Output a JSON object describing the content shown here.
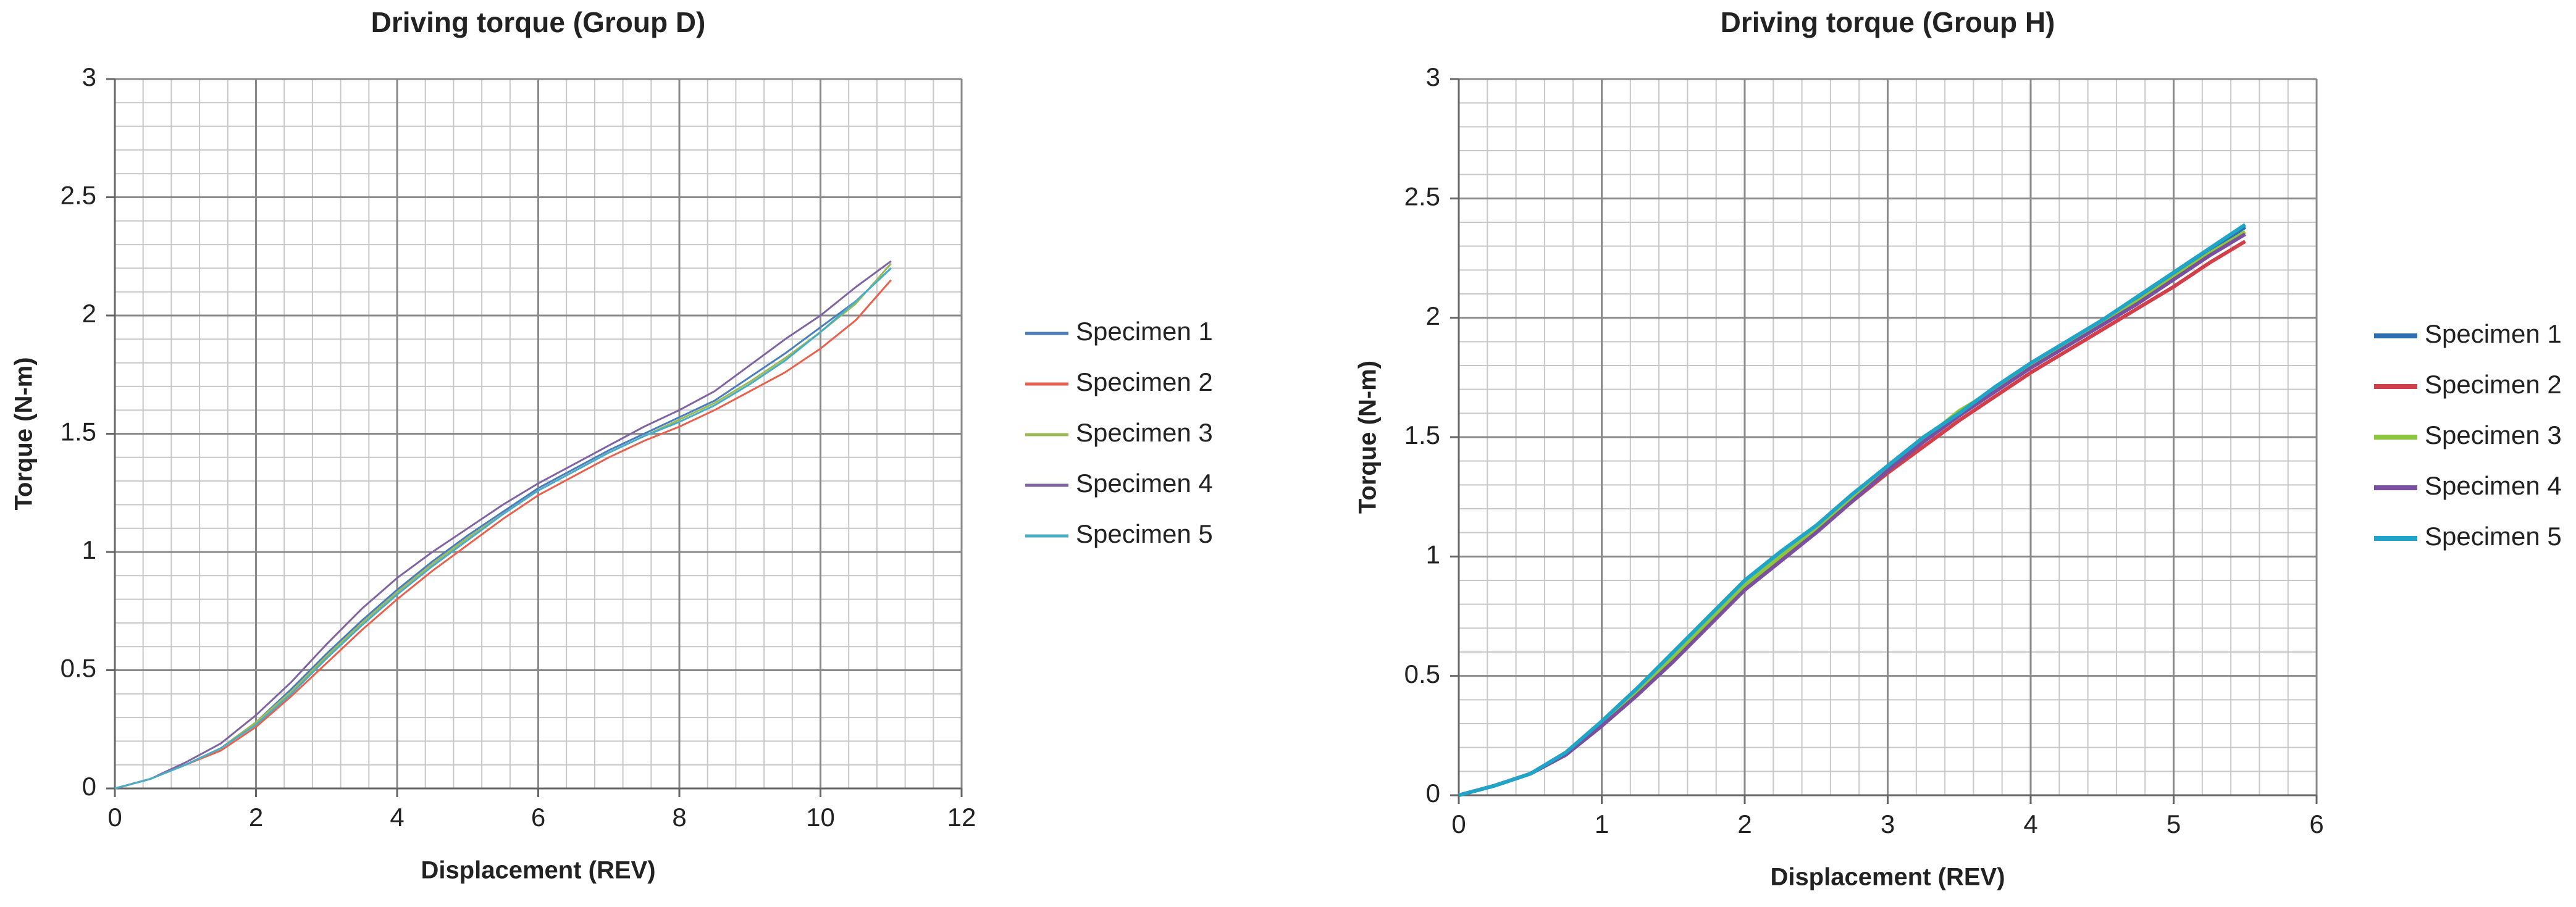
{
  "chart_data": [
    {
      "type": "line",
      "title": "Driving torque (Group D)",
      "x_label": "Displacement (REV)",
      "y_label": "Torque (N-m)",
      "xlim": [
        0,
        12
      ],
      "xticks": [
        0,
        2,
        4,
        6,
        8,
        10,
        12
      ],
      "ylim": [
        0,
        3
      ],
      "yticks": [
        0,
        0.5,
        1,
        1.5,
        2,
        2.5,
        3
      ],
      "grid": true,
      "legend": "right",
      "x": [
        0,
        0.5,
        1,
        1.5,
        2,
        2.5,
        3,
        3.5,
        4,
        4.5,
        5,
        5.5,
        6,
        6.5,
        7,
        7.5,
        8,
        8.5,
        9,
        9.5,
        10,
        10.5,
        11
      ],
      "series": [
        {
          "name": "Specimen 1",
          "color": "#4a7ebb",
          "values": [
            0,
            0.04,
            0.1,
            0.17,
            0.28,
            0.42,
            0.57,
            0.71,
            0.84,
            0.96,
            1.07,
            1.17,
            1.27,
            1.35,
            1.43,
            1.5,
            1.57,
            1.64,
            1.74,
            1.84,
            1.95,
            2.06,
            2.2
          ]
        },
        {
          "name": "Specimen 2",
          "color": "#e8604e",
          "values": [
            0,
            0.04,
            0.1,
            0.16,
            0.26,
            0.39,
            0.53,
            0.67,
            0.8,
            0.92,
            1.03,
            1.14,
            1.24,
            1.32,
            1.4,
            1.47,
            1.53,
            1.6,
            1.68,
            1.76,
            1.86,
            1.98,
            2.15
          ]
        },
        {
          "name": "Specimen 3",
          "color": "#9bbb59",
          "values": [
            0,
            0.04,
            0.1,
            0.17,
            0.28,
            0.41,
            0.56,
            0.7,
            0.83,
            0.95,
            1.06,
            1.16,
            1.26,
            1.34,
            1.42,
            1.49,
            1.56,
            1.63,
            1.72,
            1.82,
            1.93,
            2.05,
            2.22
          ]
        },
        {
          "name": "Specimen 4",
          "color": "#8064a2",
          "values": [
            0,
            0.04,
            0.11,
            0.19,
            0.31,
            0.45,
            0.61,
            0.76,
            0.89,
            1.0,
            1.1,
            1.2,
            1.29,
            1.37,
            1.45,
            1.53,
            1.6,
            1.68,
            1.79,
            1.9,
            2.0,
            2.12,
            2.23
          ]
        },
        {
          "name": "Specimen 5",
          "color": "#4bacc6",
          "values": [
            0,
            0.04,
            0.1,
            0.17,
            0.27,
            0.4,
            0.55,
            0.69,
            0.82,
            0.94,
            1.05,
            1.16,
            1.26,
            1.34,
            1.42,
            1.49,
            1.55,
            1.62,
            1.71,
            1.81,
            1.93,
            2.06,
            2.2
          ]
        }
      ]
    },
    {
      "type": "line",
      "title": "Driving torque (Group H)",
      "x_label": "Displacement (REV)",
      "y_label": "Torque (N-m)",
      "xlim": [
        0,
        6
      ],
      "xticks": [
        0,
        1,
        2,
        3,
        4,
        5,
        6
      ],
      "ylim": [
        0,
        3
      ],
      "yticks": [
        0,
        0.5,
        1,
        1.5,
        2,
        2.5,
        3
      ],
      "grid": true,
      "legend": "right",
      "x": [
        0,
        0.25,
        0.5,
        0.75,
        1,
        1.25,
        1.5,
        1.75,
        2,
        2.25,
        2.5,
        2.75,
        3,
        3.25,
        3.5,
        3.75,
        4,
        4.25,
        4.5,
        4.75,
        5,
        5.25,
        5.5
      ],
      "series": [
        {
          "name": "Specimen 1",
          "color": "#2f6eb0",
          "values": [
            0,
            0.04,
            0.09,
            0.17,
            0.3,
            0.44,
            0.58,
            0.73,
            0.88,
            1.0,
            1.12,
            1.25,
            1.37,
            1.49,
            1.6,
            1.7,
            1.8,
            1.89,
            1.98,
            2.08,
            2.18,
            2.28,
            2.38
          ]
        },
        {
          "name": "Specimen 2",
          "color": "#d1404a",
          "values": [
            0,
            0.04,
            0.09,
            0.17,
            0.3,
            0.44,
            0.58,
            0.73,
            0.87,
            0.99,
            1.11,
            1.23,
            1.35,
            1.46,
            1.57,
            1.67,
            1.77,
            1.86,
            1.95,
            2.04,
            2.13,
            2.23,
            2.32
          ]
        },
        {
          "name": "Specimen 3",
          "color": "#8cc63e",
          "values": [
            0,
            0.04,
            0.09,
            0.17,
            0.3,
            0.44,
            0.58,
            0.73,
            0.88,
            1.0,
            1.12,
            1.25,
            1.37,
            1.49,
            1.61,
            1.7,
            1.8,
            1.89,
            1.98,
            2.07,
            2.17,
            2.27,
            2.36
          ]
        },
        {
          "name": "Specimen 4",
          "color": "#7a4fa0",
          "values": [
            0,
            0.04,
            0.09,
            0.17,
            0.29,
            0.42,
            0.56,
            0.71,
            0.86,
            0.98,
            1.1,
            1.23,
            1.36,
            1.48,
            1.59,
            1.69,
            1.79,
            1.88,
            1.97,
            2.06,
            2.16,
            2.26,
            2.35
          ]
        },
        {
          "name": "Specimen 5",
          "color": "#1ea5c8",
          "values": [
            0,
            0.04,
            0.09,
            0.18,
            0.31,
            0.45,
            0.6,
            0.75,
            0.9,
            1.02,
            1.13,
            1.26,
            1.38,
            1.5,
            1.6,
            1.71,
            1.81,
            1.9,
            1.99,
            2.09,
            2.19,
            2.29,
            2.39
          ]
        }
      ]
    }
  ]
}
